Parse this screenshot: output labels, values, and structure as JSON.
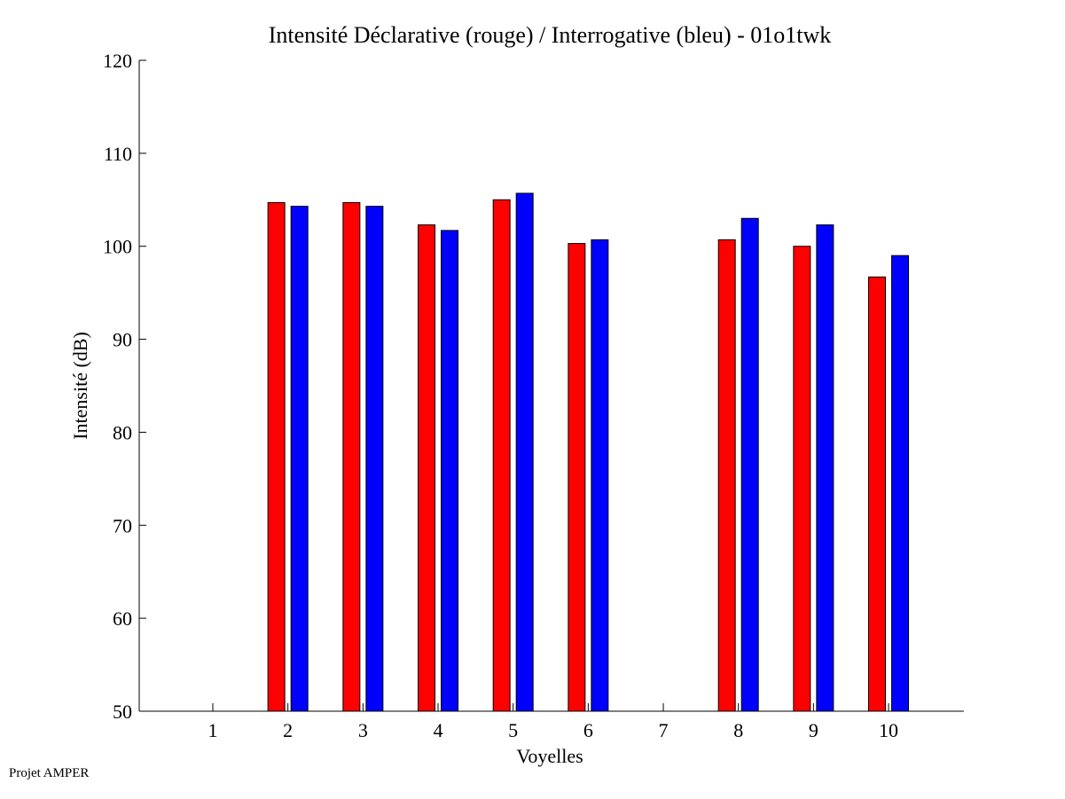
{
  "chart_data": {
    "type": "bar",
    "title": "Intensité Déclarative (rouge) / Interrogative (bleu) - 01o1twk",
    "xlabel": "Voyelles",
    "ylabel": "Intensité (dB)",
    "ylim": [
      50,
      120
    ],
    "yticks": [
      50,
      60,
      70,
      80,
      90,
      100,
      110,
      120
    ],
    "categories": [
      "1",
      "2",
      "3",
      "4",
      "5",
      "6",
      "7",
      "8",
      "9",
      "10"
    ],
    "grid": false,
    "series": [
      {
        "name": "Déclarative",
        "color": "#ff0000",
        "values": [
          null,
          104.7,
          104.7,
          102.3,
          105.0,
          100.3,
          null,
          100.7,
          100.0,
          96.7
        ]
      },
      {
        "name": "Interrogative",
        "color": "#0000ff",
        "values": [
          null,
          104.3,
          104.3,
          101.7,
          105.7,
          100.7,
          null,
          103.0,
          102.3,
          99.0
        ]
      }
    ]
  },
  "footer": {
    "label": "Projet AMPER"
  }
}
